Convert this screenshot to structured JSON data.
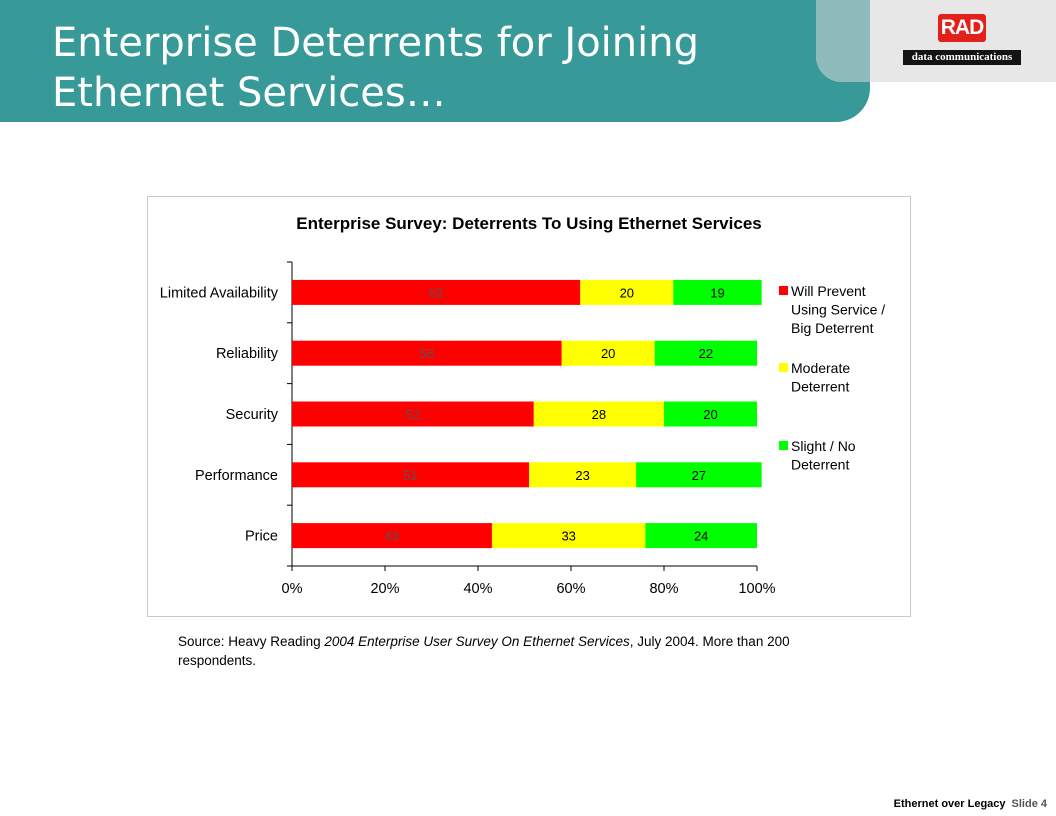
{
  "slide": {
    "title_line1": "Enterprise Deterrents for Joining",
    "title_line2": "Ethernet Services…"
  },
  "logo": {
    "brand": "RAD",
    "tagline": "data communications"
  },
  "source": {
    "prefix": "Source:  Heavy Reading ",
    "publication": "2004 Enterprise User Survey On Ethernet Services",
    "suffix": ", July 2004. More than 200 respondents."
  },
  "footer": {
    "deck": "Ethernet over Legacy",
    "slide_number": "Slide 4"
  },
  "chart_data": {
    "type": "bar",
    "orientation": "horizontal",
    "stacked": "percent",
    "title": "Enterprise Survey:  Deterrents To Using Ethernet Services",
    "categories": [
      "Limited Availability",
      "Reliability",
      "Security",
      "Performance",
      "Price"
    ],
    "series": [
      {
        "name": "Will Prevent Using Service / Big Deterrent",
        "color": "#ff0000",
        "values": [
          62,
          58,
          52,
          51,
          43
        ]
      },
      {
        "name": "Moderate Deterrent",
        "color": "#ffff00",
        "values": [
          20,
          20,
          28,
          23,
          33
        ]
      },
      {
        "name": "Slight / No Deterrent",
        "color": "#00ff00",
        "values": [
          19,
          22,
          20,
          27,
          24
        ]
      }
    ],
    "x_ticks": [
      "0%",
      "20%",
      "40%",
      "60%",
      "80%",
      "100%"
    ],
    "xlim": [
      0,
      100
    ],
    "legend_position": "right",
    "grid": false
  }
}
